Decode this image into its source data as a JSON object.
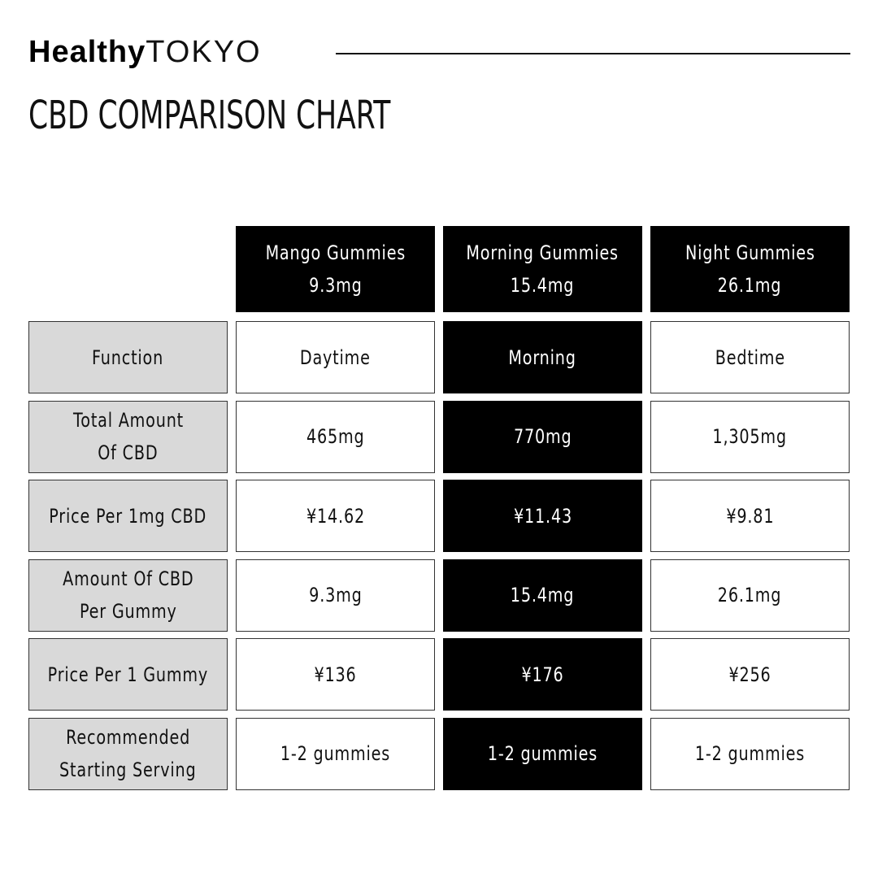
{
  "header": {
    "brand_bold": "Healthy",
    "brand_light": "TOKYO",
    "title": "CBD COMPARISON CHART"
  },
  "table": {
    "columns": [
      {
        "name": "Mango Gummies",
        "dose": "9.3mg"
      },
      {
        "name": "Morning Gummies",
        "dose": "15.4mg"
      },
      {
        "name": "Night Gummies",
        "dose": "26.1mg"
      }
    ],
    "rows": [
      {
        "label": [
          "Function"
        ],
        "cells": [
          "Daytime",
          "Morning",
          "Bedtime"
        ]
      },
      {
        "label": [
          "Total Amount",
          "Of CBD"
        ],
        "cells": [
          "465mg",
          "770mg",
          "1,305mg"
        ]
      },
      {
        "label": [
          "Price Per 1mg CBD"
        ],
        "cells": [
          "¥14.62",
          "¥11.43",
          "¥9.81"
        ]
      },
      {
        "label": [
          "Amount Of CBD",
          "Per Gummy"
        ],
        "cells": [
          "9.3mg",
          "15.4mg",
          "26.1mg"
        ]
      },
      {
        "label": [
          "Price Per 1 Gummy"
        ],
        "cells": [
          "¥136",
          "¥176",
          "¥256"
        ]
      },
      {
        "label": [
          "Recommended",
          "Starting Serving"
        ],
        "cells": [
          "1-2 gummies",
          "1-2 gummies",
          "1-2 gummies"
        ]
      }
    ]
  }
}
